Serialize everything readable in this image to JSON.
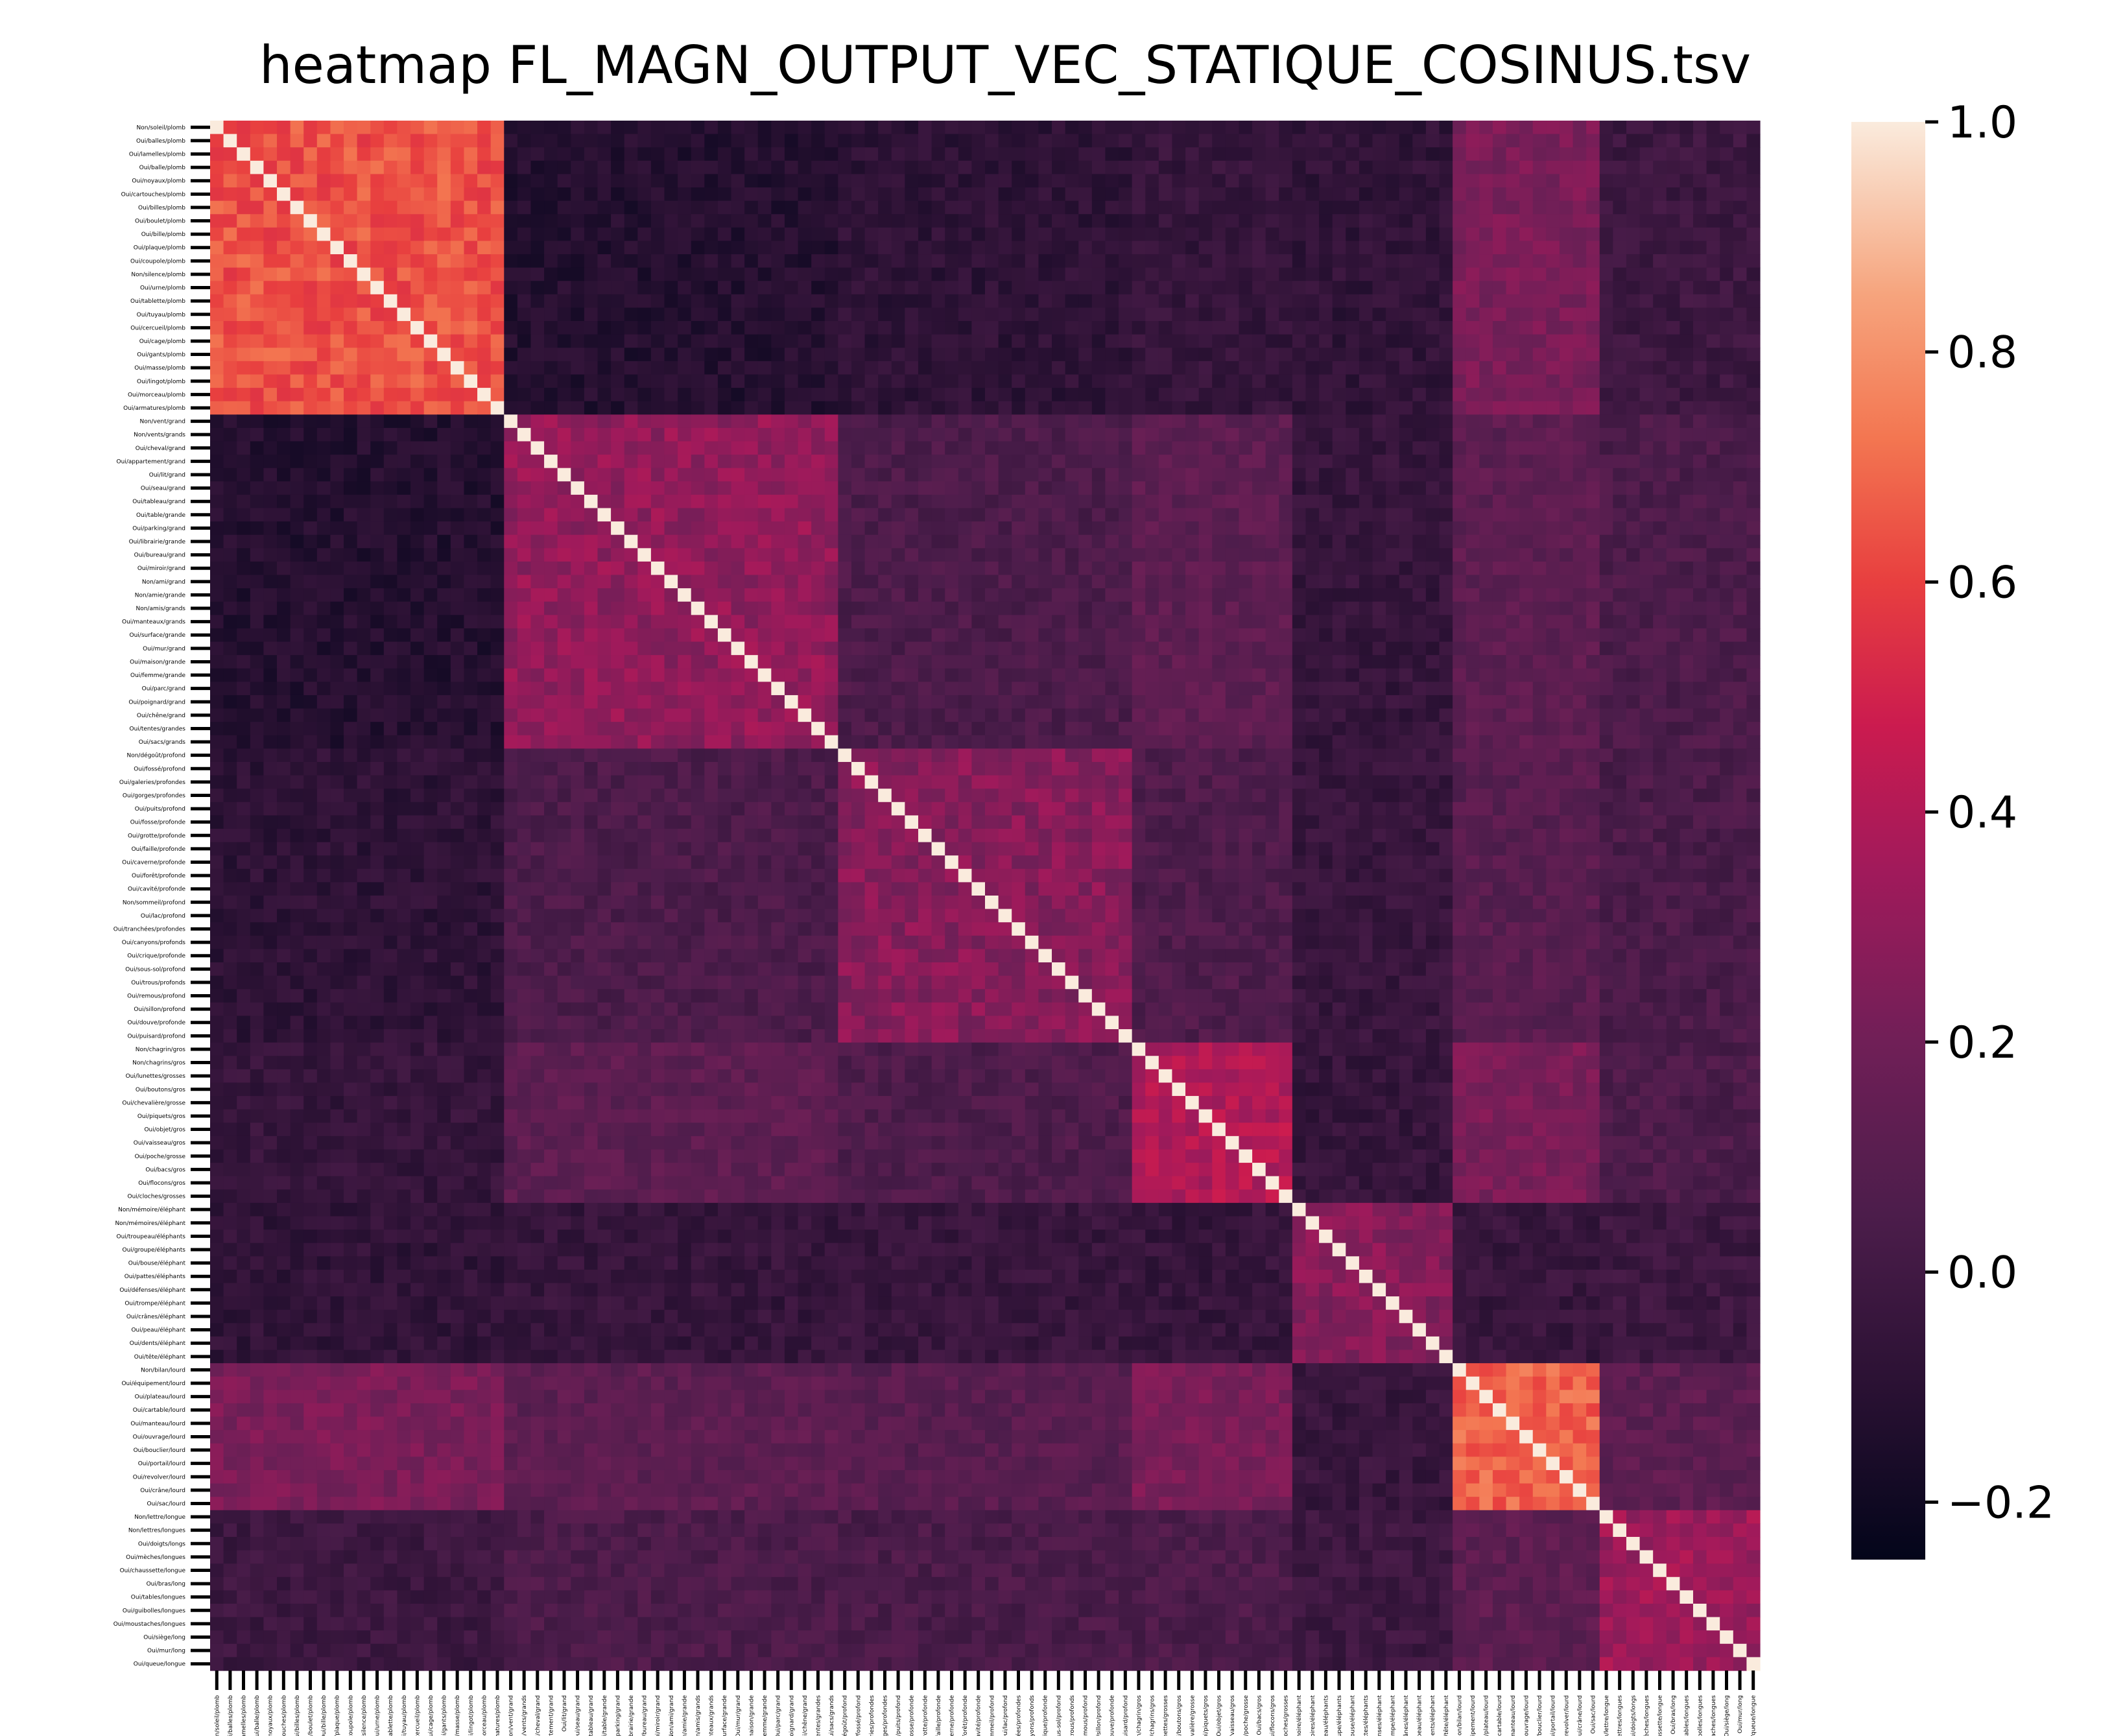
{
  "chart_data": {
    "type": "heatmap",
    "title": "heatmap FL_MAGN_OUTPUT_VEC_STATIQUE_COSINUS.tsv",
    "colormap": "rocket",
    "vmin": -0.25,
    "vmax": 1.0,
    "colorbar_ticks": [
      1.0,
      0.8,
      0.6,
      0.4,
      0.2,
      0.0,
      -0.2
    ],
    "colorbar_tick_labels": [
      "1.0",
      "0.8",
      "0.6",
      "0.4",
      "0.2",
      "0.0",
      "−0.2"
    ],
    "labels": [
      "Non/soleil/plomb",
      "Oui/balles/plomb",
      "Oui/lamelles/plomb",
      "Oui/balle/plomb",
      "Oui/noyaux/plomb",
      "Oui/cartouches/plomb",
      "Oui/billes/plomb",
      "Oui/boulet/plomb",
      "Oui/bille/plomb",
      "Oui/plaque/plomb",
      "Oui/coupole/plomb",
      "Non/silence/plomb",
      "Oui/urne/plomb",
      "Oui/tablette/plomb",
      "Oui/tuyau/plomb",
      "Oui/cercueil/plomb",
      "Oui/cage/plomb",
      "Oui/gants/plomb",
      "Oui/masse/plomb",
      "Oui/lingot/plomb",
      "Oui/morceau/plomb",
      "Oui/armatures/plomb",
      "Non/vent/grand",
      "Non/vents/grands",
      "Oui/cheval/grand",
      "Oui/appartement/grand",
      "Oui/lit/grand",
      "Oui/seau/grand",
      "Oui/tableau/grand",
      "Oui/table/grande",
      "Oui/parking/grand",
      "Oui/librairie/grande",
      "Oui/bureau/grand",
      "Oui/miroir/grand",
      "Non/ami/grand",
      "Non/amie/grande",
      "Non/amis/grands",
      "Oui/manteaux/grands",
      "Oui/surface/grande",
      "Oui/mur/grand",
      "Oui/maison/grande",
      "Oui/femme/grande",
      "Oui/parc/grand",
      "Oui/poignard/grand",
      "Oui/chêne/grand",
      "Oui/tentes/grandes",
      "Oui/sacs/grands",
      "Non/dégoût/profond",
      "Oui/fossé/profond",
      "Oui/galeries/profondes",
      "Oui/gorges/profondes",
      "Oui/puits/profond",
      "Oui/fosse/profonde",
      "Oui/grotte/profonde",
      "Oui/faille/profonde",
      "Oui/caverne/profonde",
      "Oui/forêt/profonde",
      "Oui/cavité/profonde",
      "Non/sommeil/profond",
      "Oui/lac/profond",
      "Oui/tranchées/profondes",
      "Oui/canyons/profonds",
      "Oui/crique/profonde",
      "Oui/sous-sol/profond",
      "Oui/trous/profonds",
      "Oui/remous/profond",
      "Oui/sillon/profond",
      "Oui/douve/profonde",
      "Oui/puisard/profond",
      "Non/chagrin/gros",
      "Non/chagrins/gros",
      "Oui/lunettes/grosses",
      "Oui/boutons/gros",
      "Oui/chevalière/grosse",
      "Oui/piquets/gros",
      "Oui/objet/gros",
      "Oui/vaisseau/gros",
      "Oui/poche/grosse",
      "Oui/bacs/gros",
      "Oui/flocons/gros",
      "Oui/cloches/grosses",
      "Non/mémoire/éléphant",
      "Non/mémoires/éléphant",
      "Oui/troupeau/éléphants",
      "Oui/groupe/éléphants",
      "Oui/bouse/éléphant",
      "Oui/pattes/éléphants",
      "Oui/défenses/éléphant",
      "Oui/trompe/éléphant",
      "Oui/crânes/éléphant",
      "Oui/peau/éléphant",
      "Oui/dents/éléphant",
      "Oui/tête/éléphant",
      "Non/bilan/lourd",
      "Oui/équipement/lourd",
      "Oui/plateau/lourd",
      "Oui/cartable/lourd",
      "Oui/manteau/lourd",
      "Oui/ouvrage/lourd",
      "Oui/bouclier/lourd",
      "Oui/portail/lourd",
      "Oui/revolver/lourd",
      "Oui/crâne/lourd",
      "Oui/sac/lourd",
      "Non/lettre/longue",
      "Non/lettres/longues",
      "Oui/doigts/longs",
      "Oui/mèches/longues",
      "Oui/chaussette/longue",
      "Oui/bras/long",
      "Oui/tables/longues",
      "Oui/guibolles/longues",
      "Oui/moustaches/longues",
      "Oui/siège/long",
      "Oui/mur/long",
      "Oui/queue/longue"
    ],
    "groups": [
      {
        "name": "plomb",
        "start": 0,
        "end": 22,
        "within": 0.64
      },
      {
        "name": "grand",
        "start": 22,
        "end": 47,
        "within": 0.3
      },
      {
        "name": "profond",
        "start": 47,
        "end": 69,
        "within": 0.27
      },
      {
        "name": "gros",
        "start": 69,
        "end": 81,
        "within": 0.4
      },
      {
        "name": "éléphant",
        "start": 81,
        "end": 93,
        "within": 0.26
      },
      {
        "name": "lourd",
        "start": 93,
        "end": 104,
        "within": 0.68
      },
      {
        "name": "long",
        "start": 104,
        "end": 116,
        "within": 0.34
      }
    ],
    "cross_group_means": [
      [
        1.0,
        -0.12,
        -0.08,
        -0.05,
        -0.07,
        0.23,
        -0.02
      ],
      [
        -0.12,
        1.0,
        0.05,
        0.12,
        -0.05,
        0.12,
        0.05
      ],
      [
        -0.08,
        0.05,
        1.0,
        0.06,
        -0.04,
        0.1,
        0.04
      ],
      [
        -0.05,
        0.12,
        0.06,
        1.0,
        -0.05,
        0.23,
        0.05
      ],
      [
        -0.07,
        -0.05,
        -0.04,
        -0.05,
        1.0,
        -0.04,
        -0.02
      ],
      [
        0.23,
        0.12,
        0.1,
        0.23,
        -0.04,
        1.0,
        0.12
      ],
      [
        -0.02,
        0.05,
        0.04,
        0.05,
        -0.02,
        0.12,
        1.0
      ]
    ],
    "diagonal": 1.0
  }
}
